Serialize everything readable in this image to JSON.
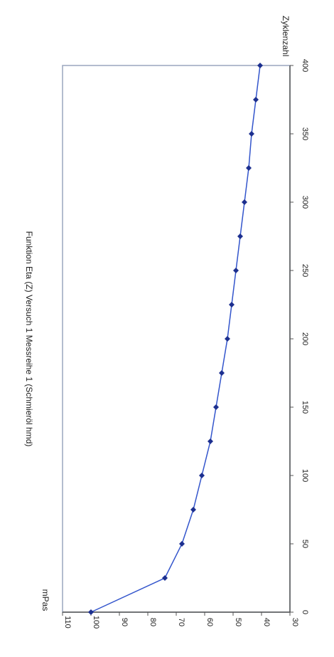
{
  "chart_data": {
    "type": "line",
    "title": "Funktion Eta (Z) Versuch 1 Messreihe 1 (Schmieröl hmd)",
    "xlabel": "Zyklenzahl",
    "ylabel": "mPas",
    "x": [
      0,
      25,
      50,
      75,
      100,
      125,
      150,
      175,
      200,
      225,
      250,
      275,
      300,
      325,
      350,
      375,
      400
    ],
    "series": [
      {
        "values": [
          100,
          74,
          68,
          64,
          61,
          58,
          56,
          54,
          52,
          50.5,
          49,
          47.5,
          46,
          44.5,
          43.5,
          42,
          40.5
        ]
      }
    ],
    "xlim": [
      0,
      400
    ],
    "ylim": [
      30,
      110
    ],
    "xticks": [
      "0",
      "50",
      "100",
      "150",
      "200",
      "250",
      "300",
      "350",
      "400"
    ],
    "yticks": [
      "110",
      "100",
      "90",
      "80",
      "70",
      "60",
      "50",
      "40",
      "30"
    ],
    "grid": false,
    "legend": "none",
    "orientation": "rotated-90-clockwise",
    "colors": {
      "line": "#3355cc",
      "marker": "#1c2f8f",
      "frame": "#9aa6bd"
    }
  }
}
